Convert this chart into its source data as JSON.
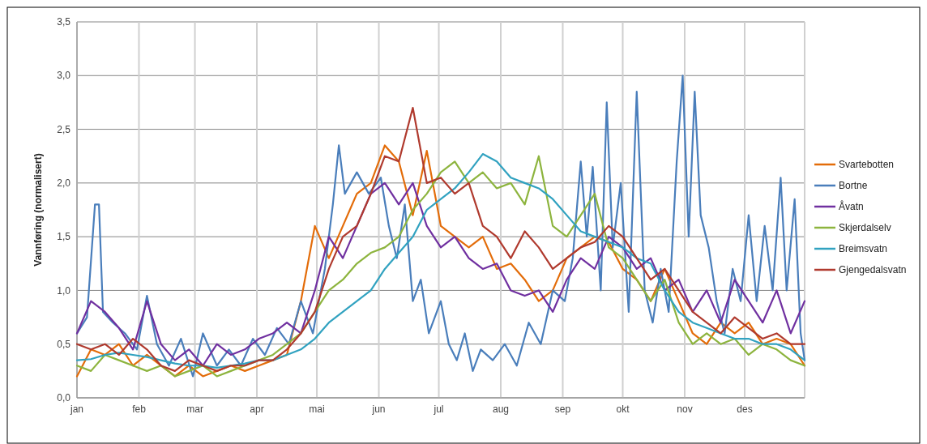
{
  "chart_data": {
    "type": "line",
    "ylabel": "Vannføring (normalisert)",
    "xlim": [
      "--01-01",
      "--12-31"
    ],
    "ylim": [
      0,
      3.5
    ],
    "xticks": [
      {
        "value": "--01-01",
        "label": "jan"
      },
      {
        "value": "--02-01",
        "label": "feb"
      },
      {
        "value": "--03-01",
        "label": "mar"
      },
      {
        "value": "--04-01",
        "label": "apr"
      },
      {
        "value": "--05-01",
        "label": "mai"
      },
      {
        "value": "--06-01",
        "label": "jun"
      },
      {
        "value": "--07-01",
        "label": "jul"
      },
      {
        "value": "--08-01",
        "label": "aug"
      },
      {
        "value": "--09-01",
        "label": "sep"
      },
      {
        "value": "--10-01",
        "label": "okt"
      },
      {
        "value": "--11-01",
        "label": "nov"
      },
      {
        "value": "--12-01",
        "label": "des"
      },
      {
        "value": "--12-31",
        "label": null
      }
    ],
    "yticks": [
      {
        "value": 0,
        "label": "0,0"
      },
      {
        "value": 0.5,
        "label": "0,5"
      },
      {
        "value": 1,
        "label": "1,0"
      },
      {
        "value": 1.5,
        "label": "1,5"
      },
      {
        "value": 2,
        "label": "2,0"
      },
      {
        "value": 2.5,
        "label": "2,5"
      },
      {
        "value": 3,
        "label": "3,0"
      },
      {
        "value": 3.5,
        "label": "3,5"
      }
    ],
    "grid": true,
    "legend": "right",
    "line_style": "solid",
    "marker": "none",
    "x": [
      "--01-01",
      "--01-08",
      "--01-15",
      "--01-22",
      "--01-29",
      "--02-05",
      "--02-12",
      "--02-19",
      "--02-26",
      "--03-05",
      "--03-12",
      "--03-19",
      "--03-26",
      "--04-02",
      "--04-09",
      "--04-16",
      "--04-23",
      "--04-30",
      "--05-07",
      "--05-14",
      "--05-21",
      "--05-28",
      "--06-04",
      "--06-11",
      "--06-18",
      "--06-25",
      "--07-02",
      "--07-09",
      "--07-16",
      "--07-23",
      "--07-30",
      "--08-06",
      "--08-13",
      "--08-20",
      "--08-27",
      "--09-03",
      "--09-10",
      "--09-17",
      "--09-24",
      "--10-01",
      "--10-08",
      "--10-15",
      "--10-22",
      "--10-29",
      "--11-05",
      "--11-12",
      "--11-19",
      "--11-26",
      "--12-03",
      "--12-10",
      "--12-17",
      "--12-24",
      "--12-31"
    ],
    "series": [
      {
        "name": "Svartebotten",
        "color": "#e36c09",
        "values": [
          0.2,
          0.45,
          0.4,
          0.5,
          0.3,
          0.4,
          0.3,
          0.2,
          0.3,
          0.2,
          0.25,
          0.3,
          0.25,
          0.3,
          0.35,
          0.4,
          0.9,
          1.6,
          1.3,
          1.6,
          1.9,
          2.0,
          2.35,
          2.2,
          1.7,
          2.3,
          1.6,
          1.5,
          1.4,
          1.5,
          1.2,
          1.25,
          1.1,
          0.9,
          1.0,
          1.3,
          1.4,
          1.5,
          1.45,
          1.2,
          1.1,
          0.9,
          1.2,
          0.9,
          0.6,
          0.5,
          0.7,
          0.6,
          0.7,
          0.5,
          0.55,
          0.5,
          0.3
        ]
      },
      {
        "name": "Bortne",
        "color": "#4a7ebb",
        "x": [
          "--01-01",
          "--01-06",
          "--01-10",
          "--01-12",
          "--01-14",
          "--01-19",
          "--01-25",
          "--01-31",
          "--02-05",
          "--02-10",
          "--02-16",
          "--02-22",
          "--02-28",
          "--03-05",
          "--03-12",
          "--03-18",
          "--03-24",
          "--03-30",
          "--04-05",
          "--04-11",
          "--04-17",
          "--04-23",
          "--04-29",
          "--05-05",
          "--05-09",
          "--05-12",
          "--05-15",
          "--05-21",
          "--05-27",
          "--06-02",
          "--06-06",
          "--06-10",
          "--06-14",
          "--06-18",
          "--06-22",
          "--06-26",
          "--07-02",
          "--07-06",
          "--07-10",
          "--07-14",
          "--07-18",
          "--07-22",
          "--07-28",
          "--08-03",
          "--08-09",
          "--08-15",
          "--08-21",
          "--08-27",
          "--09-02",
          "--09-06",
          "--09-10",
          "--09-13",
          "--09-16",
          "--09-20",
          "--09-23",
          "--09-26",
          "--09-30",
          "--10-04",
          "--10-08",
          "--10-12",
          "--10-16",
          "--10-20",
          "--10-24",
          "--10-28",
          "--10-31",
          "--11-03",
          "--11-06",
          "--11-09",
          "--11-13",
          "--11-17",
          "--11-21",
          "--11-25",
          "--11-29",
          "--12-03",
          "--12-07",
          "--12-11",
          "--12-15",
          "--12-19",
          "--12-22",
          "--12-26",
          "--12-29",
          "--12-31"
        ],
        "values": [
          0.6,
          0.75,
          1.8,
          1.8,
          0.8,
          0.7,
          0.6,
          0.45,
          0.95,
          0.5,
          0.3,
          0.55,
          0.2,
          0.6,
          0.3,
          0.45,
          0.3,
          0.55,
          0.4,
          0.65,
          0.5,
          0.9,
          0.6,
          1.2,
          1.8,
          2.35,
          1.9,
          2.1,
          1.9,
          2.05,
          1.6,
          1.3,
          1.8,
          0.9,
          1.1,
          0.6,
          0.9,
          0.5,
          0.35,
          0.6,
          0.25,
          0.45,
          0.35,
          0.5,
          0.3,
          0.7,
          0.5,
          1.0,
          0.9,
          1.3,
          2.2,
          1.5,
          2.15,
          1.0,
          2.75,
          1.4,
          2.0,
          0.8,
          2.85,
          1.0,
          0.7,
          1.2,
          0.8,
          2.2,
          3.0,
          1.5,
          2.85,
          1.7,
          1.4,
          0.9,
          0.6,
          1.2,
          0.9,
          1.7,
          0.9,
          1.6,
          1.0,
          2.05,
          1.0,
          1.85,
          0.6,
          0.35
        ]
      },
      {
        "name": "Åvatn",
        "color": "#7030a0",
        "values": [
          0.6,
          0.9,
          0.8,
          0.65,
          0.45,
          0.9,
          0.5,
          0.35,
          0.45,
          0.3,
          0.5,
          0.4,
          0.45,
          0.55,
          0.6,
          0.7,
          0.6,
          1.0,
          1.5,
          1.3,
          1.6,
          1.9,
          2.0,
          1.8,
          2.0,
          1.6,
          1.4,
          1.5,
          1.3,
          1.2,
          1.25,
          1.0,
          0.95,
          1.0,
          0.8,
          1.1,
          1.3,
          1.2,
          1.5,
          1.4,
          1.2,
          1.3,
          1.0,
          1.1,
          0.8,
          1.0,
          0.7,
          1.1,
          0.9,
          0.7,
          1.0,
          0.6,
          0.9
        ]
      },
      {
        "name": "Skjerdalselv",
        "color": "#8db43e",
        "values": [
          0.3,
          0.25,
          0.4,
          0.35,
          0.3,
          0.25,
          0.3,
          0.2,
          0.25,
          0.3,
          0.2,
          0.25,
          0.3,
          0.35,
          0.4,
          0.5,
          0.6,
          0.8,
          1.0,
          1.1,
          1.25,
          1.35,
          1.4,
          1.5,
          1.75,
          1.9,
          2.1,
          2.2,
          2.0,
          2.1,
          1.95,
          2.0,
          1.8,
          2.25,
          1.6,
          1.5,
          1.7,
          1.9,
          1.4,
          1.3,
          1.1,
          0.9,
          1.1,
          0.7,
          0.5,
          0.6,
          0.5,
          0.55,
          0.4,
          0.5,
          0.45,
          0.35,
          0.3
        ]
      },
      {
        "name": "Breimsvatn",
        "color": "#31a2c0",
        "values": [
          0.35,
          0.36,
          0.4,
          0.42,
          0.4,
          0.38,
          0.35,
          0.32,
          0.3,
          0.3,
          0.28,
          0.3,
          0.32,
          0.35,
          0.35,
          0.4,
          0.45,
          0.55,
          0.7,
          0.8,
          0.9,
          1.0,
          1.2,
          1.35,
          1.5,
          1.75,
          1.85,
          1.95,
          2.1,
          2.27,
          2.2,
          2.05,
          2.0,
          1.95,
          1.85,
          1.7,
          1.55,
          1.5,
          1.45,
          1.4,
          1.3,
          1.25,
          1.0,
          0.8,
          0.7,
          0.65,
          0.6,
          0.55,
          0.55,
          0.5,
          0.5,
          0.45,
          0.35
        ]
      },
      {
        "name": "Gjengedalsvatn",
        "color": "#b03a2e",
        "values": [
          0.5,
          0.45,
          0.5,
          0.4,
          0.55,
          0.45,
          0.3,
          0.25,
          0.35,
          0.3,
          0.25,
          0.3,
          0.3,
          0.35,
          0.35,
          0.45,
          0.6,
          0.8,
          1.2,
          1.5,
          1.6,
          1.9,
          2.25,
          2.2,
          2.7,
          2.0,
          2.05,
          1.9,
          2.0,
          1.6,
          1.5,
          1.3,
          1.55,
          1.4,
          1.2,
          1.3,
          1.4,
          1.45,
          1.6,
          1.5,
          1.3,
          1.1,
          1.2,
          1.0,
          0.8,
          0.7,
          0.6,
          0.75,
          0.65,
          0.55,
          0.6,
          0.5,
          0.5
        ]
      }
    ]
  }
}
